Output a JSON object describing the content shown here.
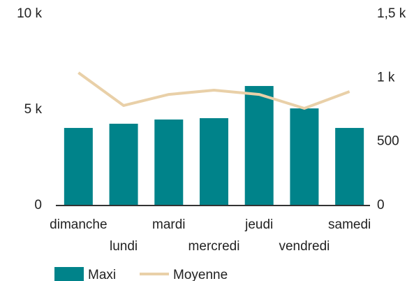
{
  "chart_data": {
    "type": "bar-line",
    "categories": [
      "dimanche",
      "lundi",
      "mardi",
      "mercredi",
      "jeudi",
      "vendredi",
      "samedi"
    ],
    "series": [
      {
        "name": "Maxi",
        "color": "#00838a",
        "type": "bar",
        "values": [
          4050,
          4270,
          4490,
          4560,
          6240,
          5070,
          4050
        ]
      },
      {
        "name": "Moyenne",
        "color": "#e9d0a8",
        "type": "line",
        "axis": "y2",
        "values": [
          1040,
          783,
          870,
          903,
          870,
          761,
          892
        ]
      }
    ],
    "ylim": [
      0,
      10000
    ],
    "yticks": [
      0,
      {
        "value": 5000,
        "label": "5 k"
      },
      {
        "value": 10000,
        "label": "10 k"
      }
    ],
    "y2lim": [
      0,
      1500
    ],
    "y2ticks": [
      0,
      500,
      {
        "value": 1000,
        "label": "1 k"
      },
      {
        "value": 1500,
        "label": "1,5 k"
      }
    ],
    "legend": "bottom"
  }
}
